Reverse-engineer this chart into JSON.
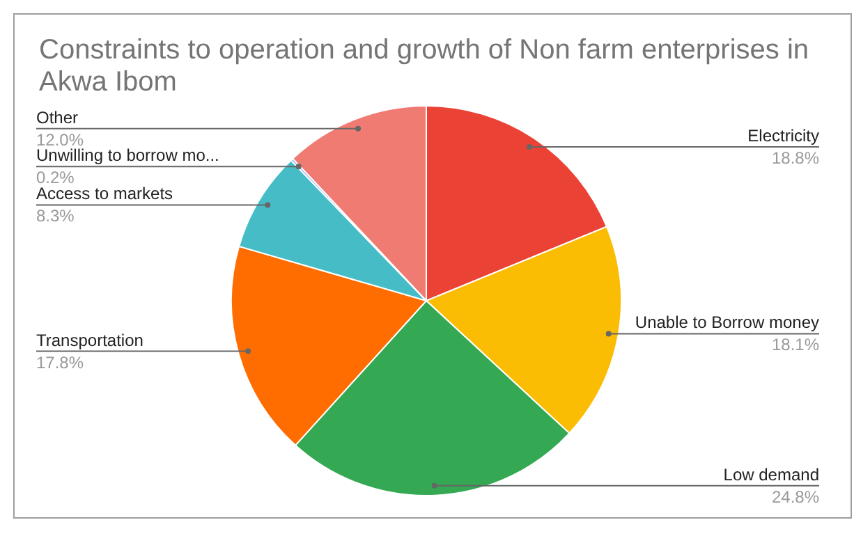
{
  "chart_data": {
    "type": "pie",
    "title": "Constraints to operation and growth of Non farm enterprises in Akwa Ibom",
    "categories": [
      "Electricity",
      "Unable to Borrow money",
      "Low demand",
      "Transportation",
      "Access to markets",
      "Unwilling to borrow mo...",
      "Other"
    ],
    "values": [
      18.8,
      18.1,
      24.8,
      17.8,
      8.3,
      0.2,
      12.0
    ],
    "colors": [
      "#ea4335",
      "#fbbc04",
      "#34a853",
      "#ff6d01",
      "#46bdc6",
      "#7baaf7",
      "#f07b72"
    ],
    "value_labels": [
      "18.8%",
      "18.1%",
      "24.8%",
      "17.8%",
      "8.3%",
      "0.2%",
      "12.0%"
    ]
  }
}
